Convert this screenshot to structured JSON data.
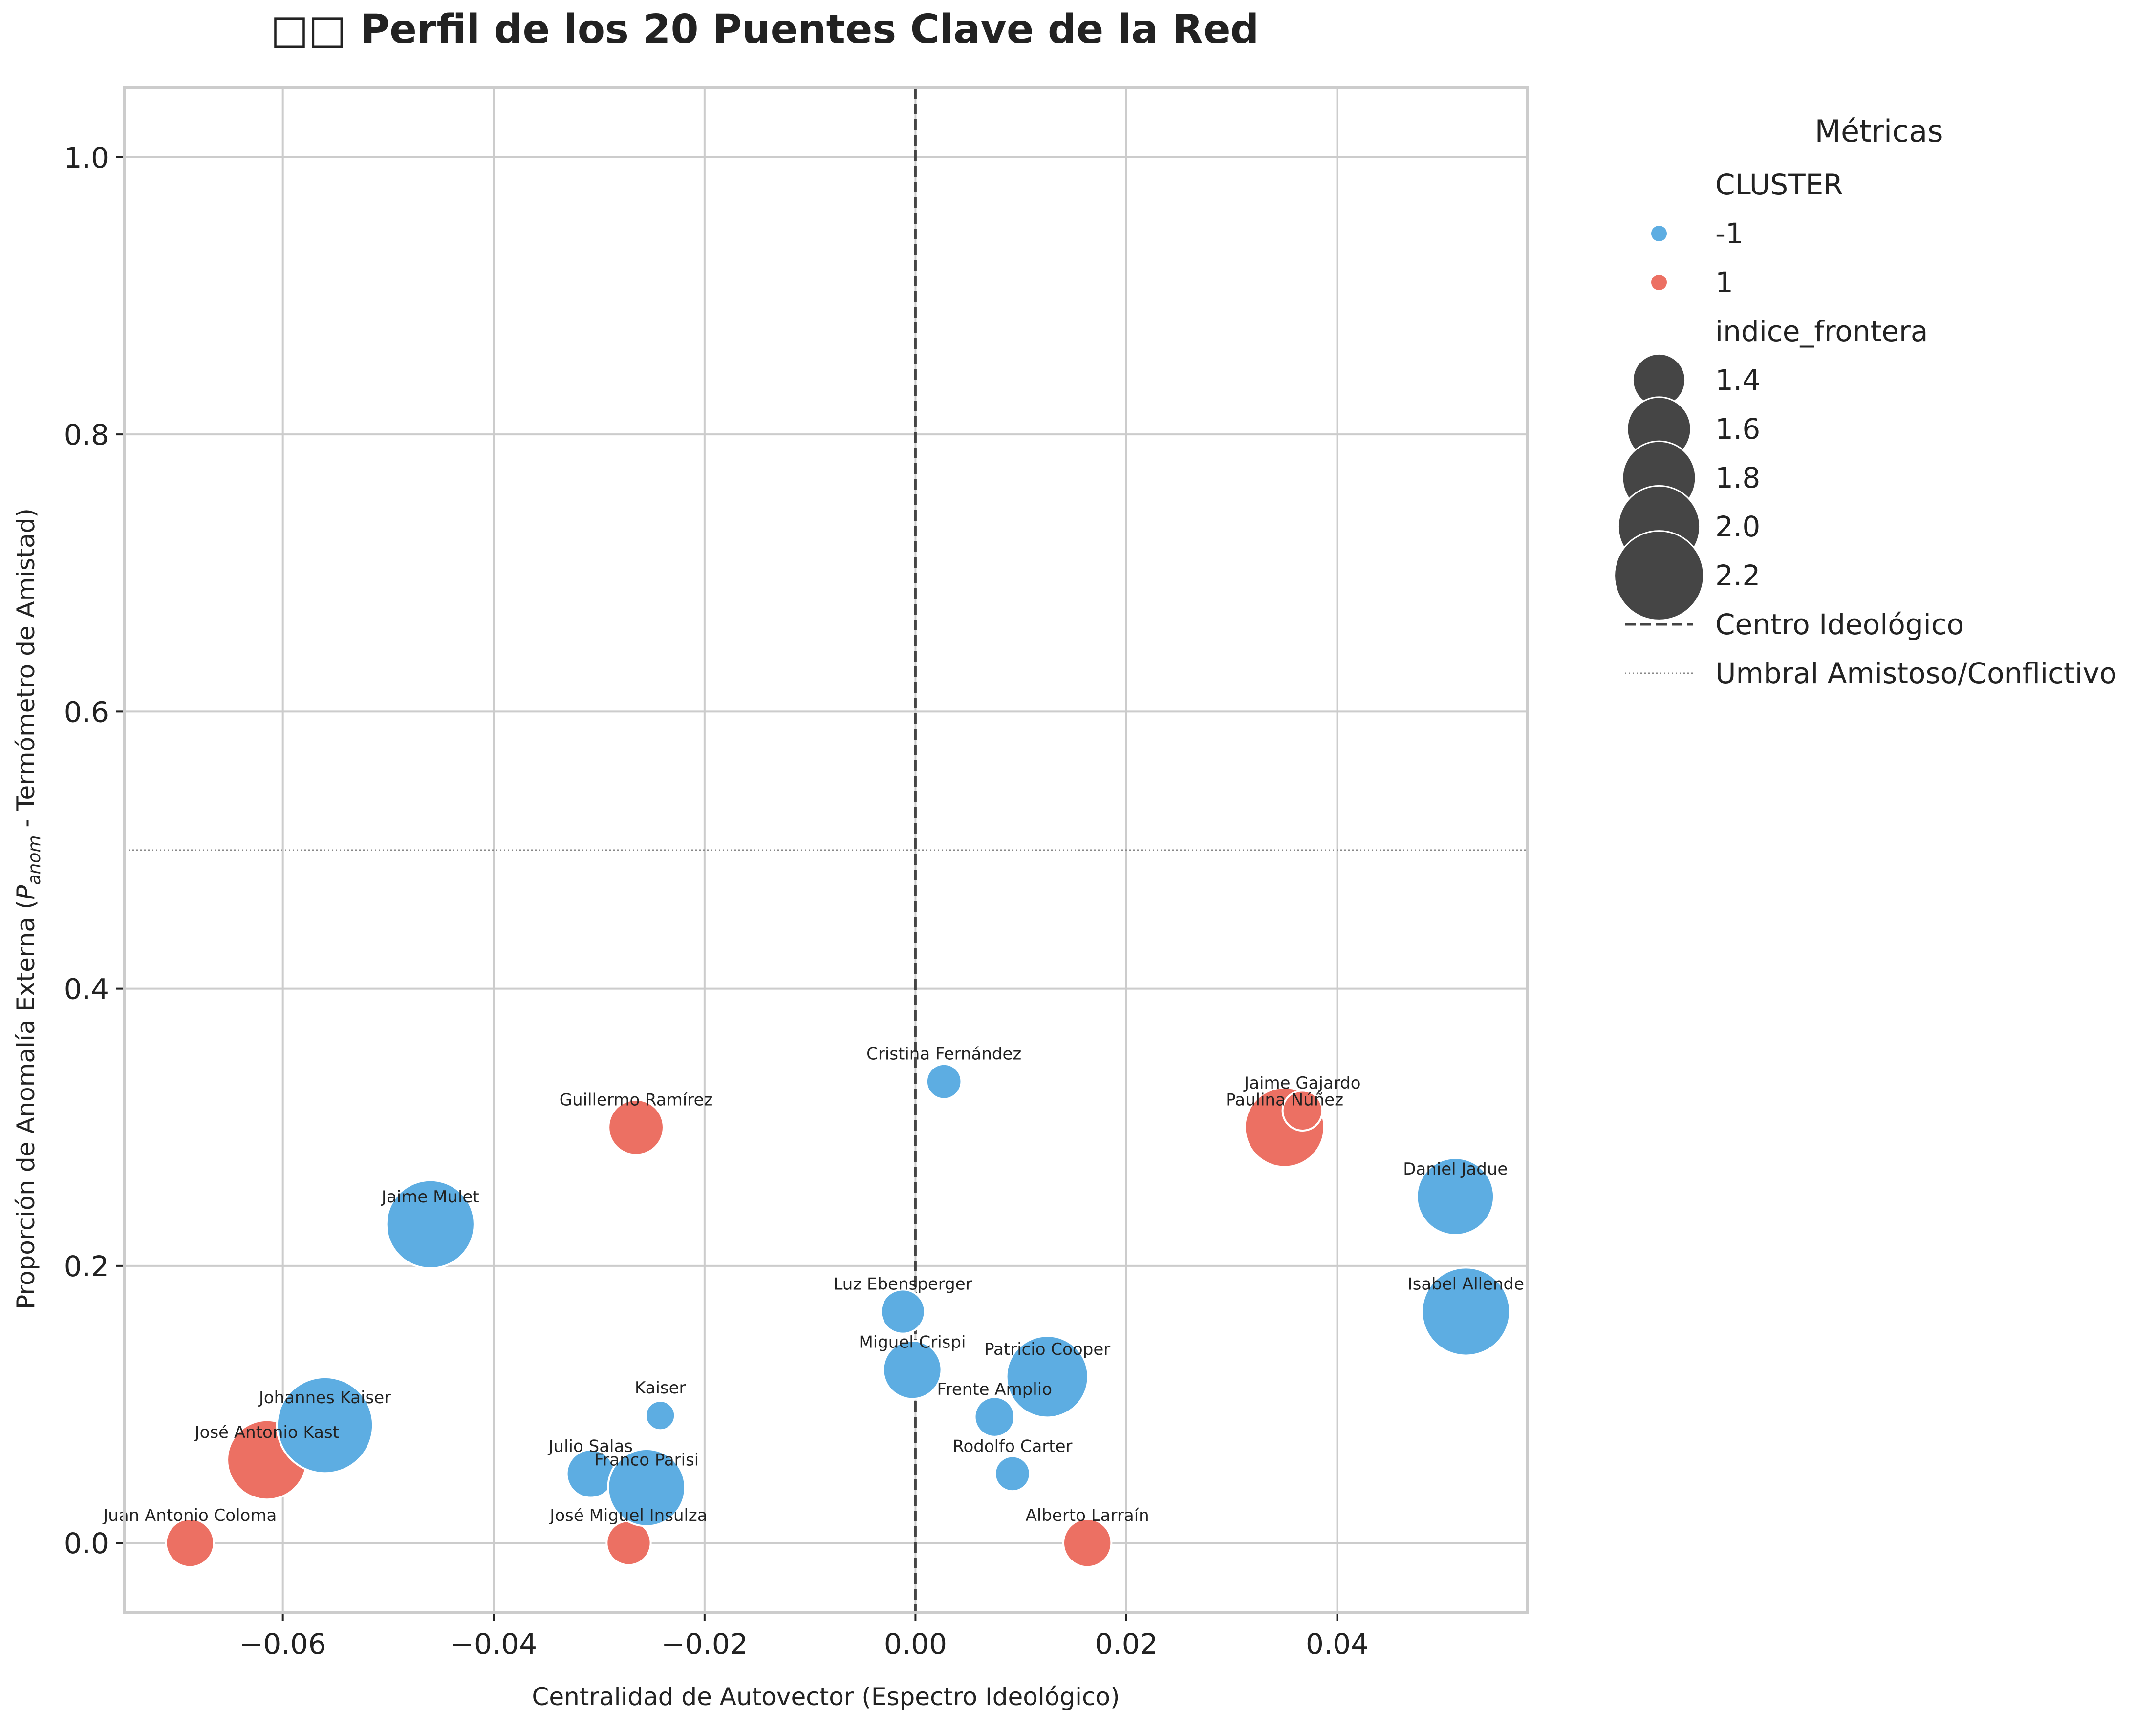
{
  "chart_data": {
    "type": "scatter",
    "title": "□□ Perfil de los 20 Puentes Clave de la Red",
    "xlabel": "Centralidad de Autovector (Espectro Ideológico)",
    "ylabel_main": "Proporción de Anomalía Externa (",
    "ylabel_p": "P",
    "ylabel_sub": "anom",
    "ylabel_tail": " - Termómetro de Amistad)",
    "xlim": [
      -0.075,
      0.058
    ],
    "ylim": [
      -0.05,
      1.05
    ],
    "xticks": [
      -0.06,
      -0.04,
      -0.02,
      0.0,
      0.02,
      0.04
    ],
    "xtick_labels": [
      "−0.06",
      "−0.04",
      "−0.02",
      "0.00",
      "0.02",
      "0.04"
    ],
    "yticks": [
      0.0,
      0.2,
      0.4,
      0.6,
      0.8,
      1.0
    ],
    "ytick_labels": [
      "0.0",
      "0.2",
      "0.4",
      "0.6",
      "0.8",
      "1.0"
    ],
    "grid": true,
    "reference_lines": [
      {
        "name": "Centro Ideológico",
        "orientation": "vertical",
        "value": 0.0,
        "style": "dashed"
      },
      {
        "name": "Umbral Amistoso/Conflictivo",
        "orientation": "horizontal",
        "value": 0.5,
        "style": "dotted"
      }
    ],
    "colors": {
      "-1": "#5DADE2",
      "1": "#EC7063"
    },
    "points": [
      {
        "name": "Juan Antonio Coloma",
        "x": -0.0688,
        "y": 0.0,
        "cluster": "1",
        "indice_frontera": 1.3
      },
      {
        "name": "José Antonio Kast",
        "x": -0.0615,
        "y": 0.06,
        "cluster": "1",
        "indice_frontera": 1.85
      },
      {
        "name": "Johannes Kaiser",
        "x": -0.056,
        "y": 0.085,
        "cluster": "-1",
        "indice_frontera": 2.25
      },
      {
        "name": "Jaime Mulet",
        "x": -0.046,
        "y": 0.23,
        "cluster": "-1",
        "indice_frontera": 2.05
      },
      {
        "name": "Julio Salas",
        "x": -0.0308,
        "y": 0.05,
        "cluster": "-1",
        "indice_frontera": 1.3
      },
      {
        "name": "José Miguel Insulza",
        "x": -0.0272,
        "y": 0.0,
        "cluster": "1",
        "indice_frontera": 1.25
      },
      {
        "name": "Franco Parisi",
        "x": -0.0255,
        "y": 0.04,
        "cluster": "-1",
        "indice_frontera": 1.8
      },
      {
        "name": "Guillermo Ramírez",
        "x": -0.0265,
        "y": 0.3,
        "cluster": "1",
        "indice_frontera": 1.4
      },
      {
        "name": "Kaiser",
        "x": -0.0242,
        "y": 0.092,
        "cluster": "-1",
        "indice_frontera": 1.1
      },
      {
        "name": "Luz Ebensperger",
        "x": -0.0012,
        "y": 0.167,
        "cluster": "-1",
        "indice_frontera": 1.25
      },
      {
        "name": "Miguel Crispi",
        "x": -0.0003,
        "y": 0.125,
        "cluster": "-1",
        "indice_frontera": 1.45
      },
      {
        "name": "Cristina Fernández",
        "x": 0.0027,
        "y": 0.333,
        "cluster": "-1",
        "indice_frontera": 1.15
      },
      {
        "name": "Frente Amplio",
        "x": 0.0075,
        "y": 0.091,
        "cluster": "-1",
        "indice_frontera": 1.2
      },
      {
        "name": "Rodolfo Carter",
        "x": 0.0092,
        "y": 0.05,
        "cluster": "-1",
        "indice_frontera": 1.15
      },
      {
        "name": "Patricio Cooper",
        "x": 0.0125,
        "y": 0.12,
        "cluster": "-1",
        "indice_frontera": 1.9
      },
      {
        "name": "Alberto Larraín",
        "x": 0.0163,
        "y": 0.0,
        "cluster": "1",
        "indice_frontera": 1.3
      },
      {
        "name": "Paulina Núñez",
        "x": 0.035,
        "y": 0.3,
        "cluster": "1",
        "indice_frontera": 1.85
      },
      {
        "name": "Jaime Gajardo",
        "x": 0.0367,
        "y": 0.312,
        "cluster": "1",
        "indice_frontera": 1.2
      },
      {
        "name": "Daniel Jadue",
        "x": 0.0512,
        "y": 0.25,
        "cluster": "-1",
        "indice_frontera": 1.8
      },
      {
        "name": "Isabel Allende",
        "x": 0.0522,
        "y": 0.167,
        "cluster": "-1",
        "indice_frontera": 2.05
      }
    ],
    "legend": {
      "title": "Métricas",
      "placement": "outside-right",
      "hue_title": "CLUSTER",
      "hue_entries": [
        {
          "label": "-1",
          "cluster": "-1"
        },
        {
          "label": "1",
          "cluster": "1"
        }
      ],
      "size_title": "indice_frontera",
      "size_entries": [
        {
          "label": "1.4",
          "value": 1.4
        },
        {
          "label": "1.6",
          "value": 1.6
        },
        {
          "label": "1.8",
          "value": 1.8
        },
        {
          "label": "2.0",
          "value": 2.0
        },
        {
          "label": "2.2",
          "value": 2.2
        }
      ],
      "line_entries": [
        {
          "label": "Centro Ideológico",
          "style": "dashed"
        },
        {
          "label": "Umbral Amistoso/Conflictivo",
          "style": "dotted"
        }
      ]
    }
  }
}
